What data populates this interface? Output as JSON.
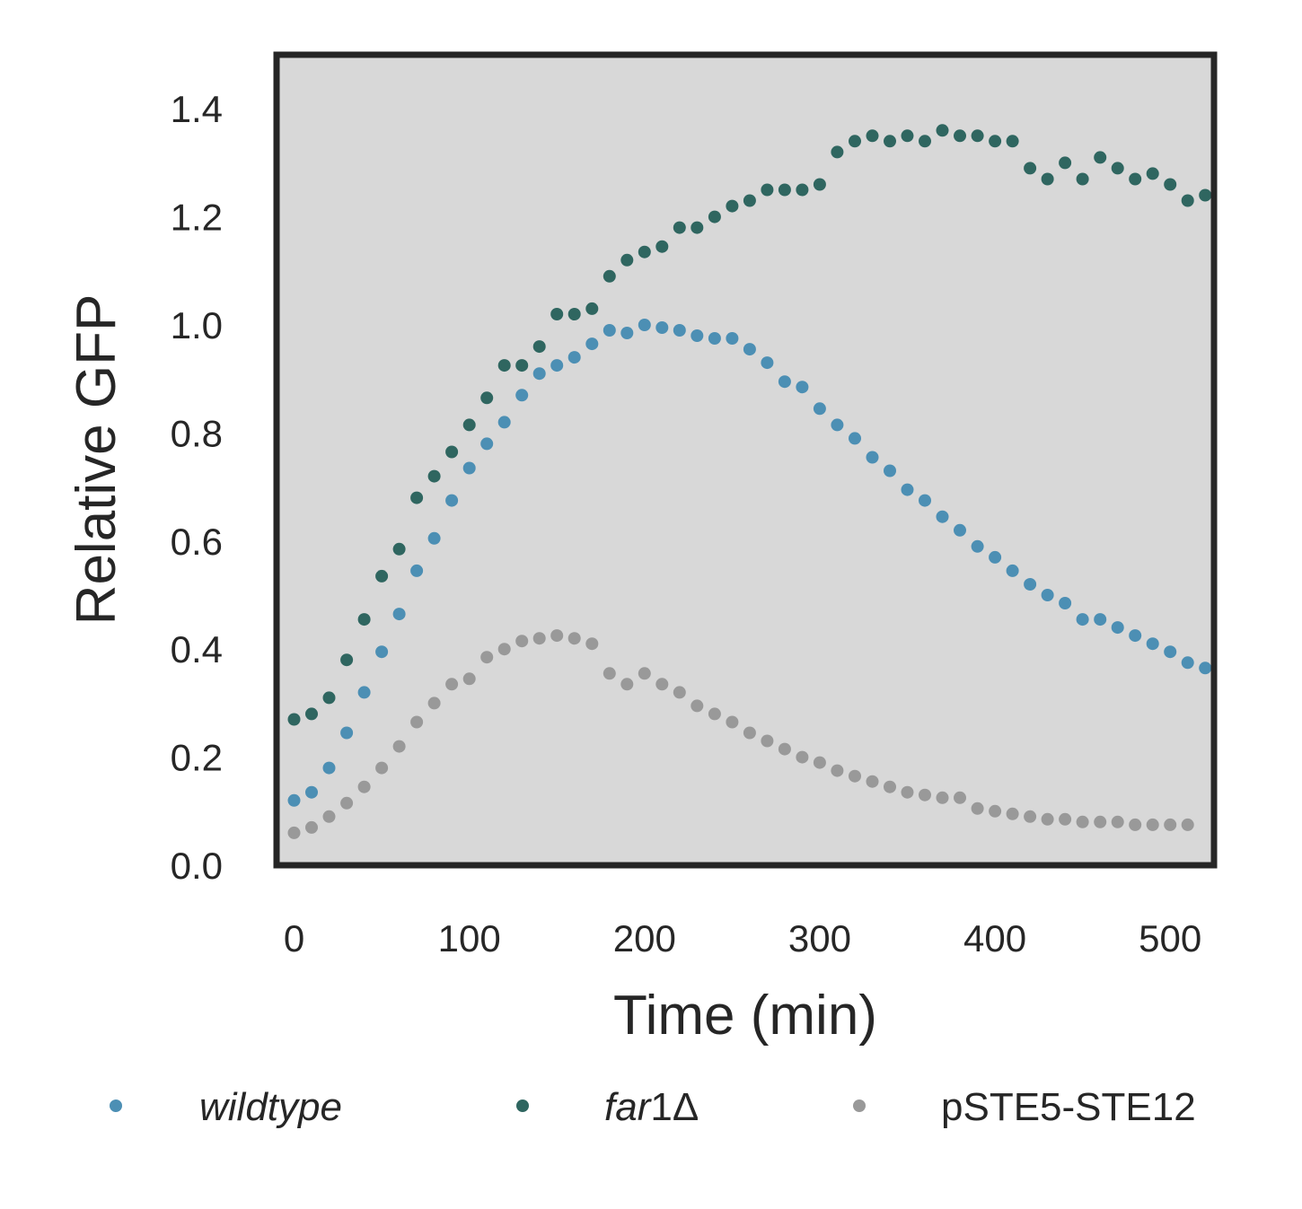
{
  "chart_data": {
    "type": "scatter",
    "xlabel": "Time (min)",
    "ylabel": "Relative GFP",
    "xlim": [
      -10,
      525
    ],
    "ylim": [
      0.0,
      1.5
    ],
    "xticks": [
      "0",
      "100",
      "200",
      "300",
      "400",
      "500"
    ],
    "yticks": [
      "0.0",
      "0.2",
      "0.4",
      "0.6",
      "0.8",
      "1.0",
      "1.2",
      "1.4"
    ],
    "grid": false,
    "background": "#d8d8d8",
    "legend_position": "bottom",
    "legend_entries": [
      {
        "label": "wildtype",
        "italic": true
      },
      {
        "label_italic": "far",
        "label_rest": "1Δ"
      },
      {
        "label": "pSTE5-STE12",
        "italic": false
      }
    ],
    "series": [
      {
        "name": "wildtype",
        "color": "#4c8fb4",
        "x": [
          0,
          10,
          20,
          30,
          40,
          50,
          60,
          70,
          80,
          90,
          100,
          110,
          120,
          130,
          140,
          150,
          160,
          170,
          180,
          190,
          200,
          210,
          220,
          230,
          240,
          250,
          260,
          270,
          280,
          290,
          300,
          310,
          320,
          330,
          340,
          350,
          360,
          370,
          380,
          390,
          400,
          410,
          420,
          430,
          440,
          450,
          460,
          470,
          480,
          490,
          500,
          510,
          520
        ],
        "y": [
          0.12,
          0.135,
          0.18,
          0.245,
          0.32,
          0.395,
          0.465,
          0.545,
          0.605,
          0.675,
          0.735,
          0.78,
          0.82,
          0.87,
          0.91,
          0.925,
          0.94,
          0.965,
          0.99,
          0.985,
          1.0,
          0.995,
          0.99,
          0.98,
          0.975,
          0.975,
          0.955,
          0.93,
          0.895,
          0.885,
          0.845,
          0.815,
          0.79,
          0.755,
          0.73,
          0.695,
          0.675,
          0.645,
          0.62,
          0.59,
          0.57,
          0.545,
          0.52,
          0.5,
          0.485,
          0.455,
          0.455,
          0.44,
          0.425,
          0.41,
          0.395,
          0.375,
          0.365
        ]
      },
      {
        "name": "far1Δ",
        "color": "#2f6660",
        "x": [
          0,
          10,
          20,
          30,
          40,
          50,
          60,
          70,
          80,
          90,
          100,
          110,
          120,
          130,
          140,
          150,
          160,
          170,
          180,
          190,
          200,
          210,
          220,
          230,
          240,
          250,
          260,
          270,
          280,
          290,
          300,
          310,
          320,
          330,
          340,
          350,
          360,
          370,
          380,
          390,
          400,
          410,
          420,
          430,
          440,
          450,
          460,
          470,
          480,
          490,
          500,
          510,
          520
        ],
        "y": [
          0.27,
          0.28,
          0.31,
          0.38,
          0.455,
          0.535,
          0.585,
          0.68,
          0.72,
          0.765,
          0.815,
          0.865,
          0.925,
          0.925,
          0.96,
          1.02,
          1.02,
          1.03,
          1.09,
          1.12,
          1.135,
          1.145,
          1.18,
          1.18,
          1.2,
          1.22,
          1.23,
          1.25,
          1.25,
          1.25,
          1.26,
          1.32,
          1.34,
          1.35,
          1.34,
          1.35,
          1.34,
          1.36,
          1.35,
          1.35,
          1.34,
          1.34,
          1.29,
          1.27,
          1.3,
          1.27,
          1.31,
          1.29,
          1.27,
          1.28,
          1.26,
          1.23,
          1.24
        ]
      },
      {
        "name": "pSTE5-STE12",
        "color": "#999999",
        "x": [
          0,
          10,
          20,
          30,
          40,
          50,
          60,
          70,
          80,
          90,
          100,
          110,
          120,
          130,
          140,
          150,
          160,
          170,
          180,
          190,
          200,
          210,
          220,
          230,
          240,
          250,
          260,
          270,
          280,
          290,
          300,
          310,
          320,
          330,
          340,
          350,
          360,
          370,
          380,
          390,
          400,
          410,
          420,
          430,
          440,
          450,
          460,
          470,
          480,
          490,
          500,
          510
        ],
        "y": [
          0.06,
          0.07,
          0.09,
          0.115,
          0.145,
          0.18,
          0.22,
          0.265,
          0.3,
          0.335,
          0.345,
          0.385,
          0.4,
          0.415,
          0.42,
          0.425,
          0.42,
          0.41,
          0.355,
          0.335,
          0.355,
          0.335,
          0.32,
          0.295,
          0.28,
          0.265,
          0.245,
          0.23,
          0.215,
          0.2,
          0.19,
          0.175,
          0.165,
          0.155,
          0.145,
          0.135,
          0.13,
          0.125,
          0.125,
          0.105,
          0.1,
          0.095,
          0.09,
          0.085,
          0.085,
          0.08,
          0.08,
          0.08,
          0.075,
          0.075,
          0.075,
          0.075
        ]
      }
    ]
  }
}
